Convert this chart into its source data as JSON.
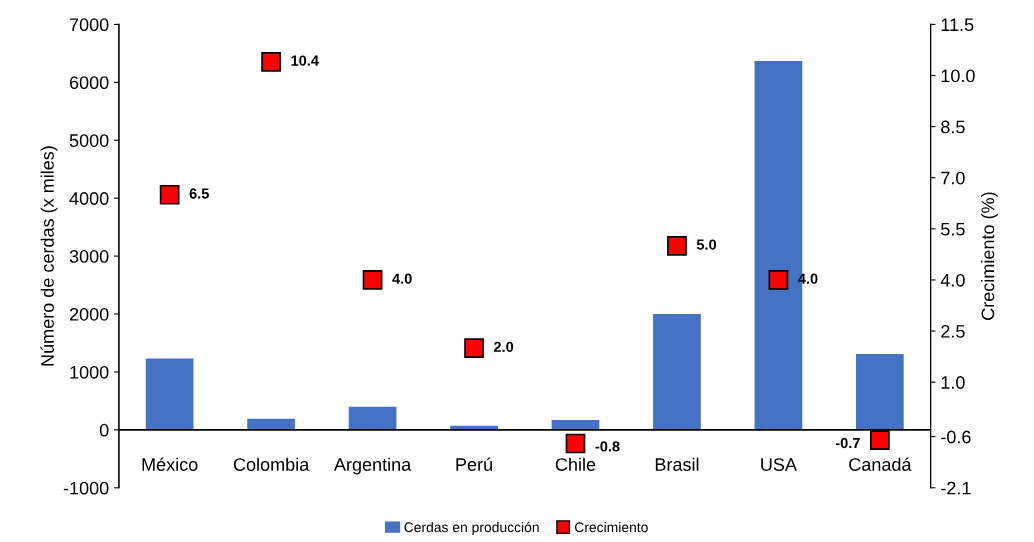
{
  "chart_data": {
    "type": "bar",
    "categories": [
      "México",
      "Colombia",
      "Argentina",
      "Perú",
      "Chile",
      "Brasil",
      "USA",
      "Canadá"
    ],
    "ylabel": "Número de cerdas (x miles)",
    "y2label": "Crecimiento (%)",
    "series": [
      {
        "name": "Cerdas en producción",
        "color": "#4472c4",
        "values": [
          1230,
          190,
          400,
          70,
          170,
          2000,
          6370,
          1310
        ]
      },
      {
        "name": "Crecimiento",
        "type": "scatter",
        "axis": "y2",
        "color": "#ff0000",
        "marker": "square",
        "values": [
          6.5,
          10.4,
          4.0,
          2.0,
          -0.8,
          5.0,
          4.0,
          -0.7
        ],
        "value_labels": [
          "6.5",
          "10.4",
          "4.0",
          "2.0",
          "-0.8",
          "5.0",
          "4.0",
          "-0.7"
        ]
      }
    ],
    "ylim": [
      -1000,
      7000
    ],
    "yticks": [
      -1000,
      0,
      1000,
      2000,
      3000,
      4000,
      5000,
      6000,
      7000
    ],
    "y2lim": [
      -2.1,
      11.5
    ],
    "y2ticks": [
      -2.1,
      -0.6,
      {
        "value": 1.0,
        "label": "1.0"
      },
      2.5,
      {
        "value": 4.0,
        "label": "4.0"
      },
      5.5,
      {
        "value": 7.0,
        "label": "7.0"
      },
      8.5,
      {
        "value": 10.0,
        "label": "10.0"
      },
      11.5
    ],
    "grid": false,
    "legend": "bottom"
  }
}
